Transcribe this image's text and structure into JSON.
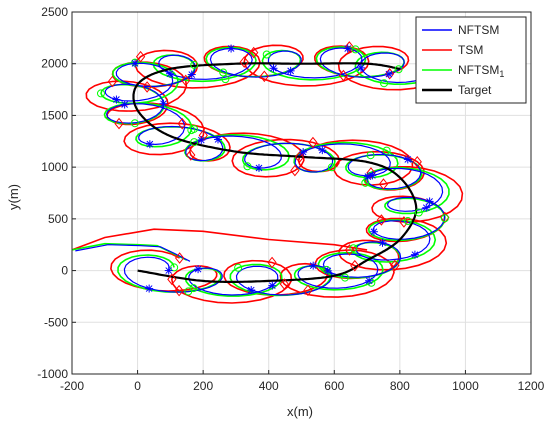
{
  "chart_data": {
    "type": "line",
    "xlabel": "x(m)",
    "ylabel": "y(m)",
    "xlim": [
      -200,
      1200
    ],
    "ylim": [
      -1000,
      2500
    ],
    "xticks": [
      "-200",
      "0",
      "200",
      "400",
      "600",
      "800",
      "1000",
      "1200"
    ],
    "yticks": [
      "-1000",
      "-500",
      "0",
      "500",
      "1000",
      "1500",
      "2000",
      "2500"
    ],
    "grid": true,
    "legend": {
      "placement": "top-right"
    },
    "series": [
      {
        "name": "NFTSM",
        "color": "#0000ff",
        "marker": "asterisk"
      },
      {
        "name": "TSM",
        "color": "#ff0000",
        "marker": "diamond"
      },
      {
        "name": "NFTSM1",
        "color": "#00ff00",
        "marker": "circle"
      },
      {
        "name": "Target",
        "color": "#000000",
        "marker": "none"
      }
    ],
    "target_path": {
      "x": [
        0,
        200,
        400,
        600,
        700,
        800,
        850,
        800,
        700,
        500,
        300,
        100,
        0,
        0,
        100,
        300,
        500,
        700,
        800
      ],
      "y": [
        0,
        -100,
        -100,
        -50,
        100,
        300,
        600,
        900,
        1050,
        1100,
        1150,
        1300,
        1550,
        1800,
        1950,
        2000,
        2000,
        2000,
        1950
      ]
    },
    "loop_radius_x": 100,
    "loop_radius_y": 150,
    "loop_count": 22
  }
}
